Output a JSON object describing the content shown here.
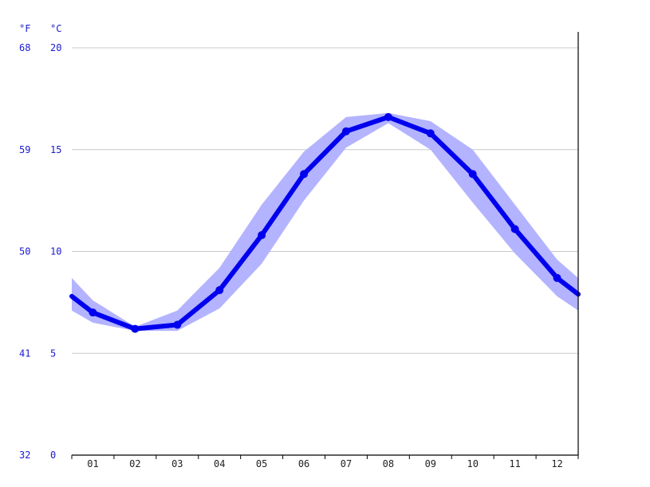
{
  "chart_data": {
    "type": "line",
    "title": "",
    "units": {
      "fahrenheit": "°F",
      "celsius": "°C"
    },
    "y_celsius": {
      "min": 0,
      "max": 20,
      "ticks": [
        0,
        5,
        10,
        15,
        20
      ]
    },
    "y_fahrenheit_ticks": [
      32,
      41,
      50,
      59,
      68
    ],
    "categories": [
      "01",
      "02",
      "03",
      "04",
      "05",
      "06",
      "07",
      "08",
      "09",
      "10",
      "11",
      "12"
    ],
    "series": [
      {
        "name": "",
        "values": [
          7.0,
          6.2,
          6.4,
          8.1,
          10.8,
          13.8,
          15.9,
          16.6,
          15.8,
          13.8,
          11.1,
          8.7
        ],
        "band_low": [
          6.5,
          6.1,
          6.1,
          7.2,
          9.4,
          12.5,
          15.1,
          16.3,
          15.0,
          12.4,
          9.9,
          7.8
        ],
        "band_high": [
          7.6,
          6.3,
          7.1,
          9.2,
          12.3,
          14.9,
          16.6,
          16.8,
          16.4,
          15.0,
          12.3,
          9.6
        ],
        "line_color": "#0000ee",
        "band_color": "#b3b3ff"
      }
    ],
    "edge_values": {
      "left": {
        "value": 7.8,
        "low": 7.1,
        "high": 8.7
      },
      "right": {
        "value": 7.9,
        "low": 7.1,
        "high": 8.7
      }
    },
    "grid": true,
    "legend": "none"
  }
}
